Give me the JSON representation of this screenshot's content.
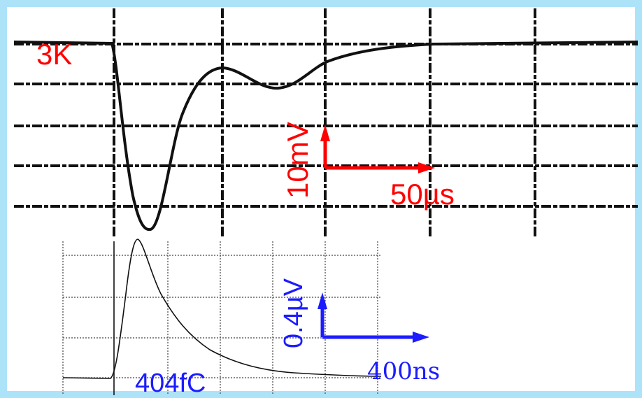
{
  "scope": {
    "temperature": "3K",
    "voltage_scale": "10mV",
    "time_scale": "50µs"
  },
  "inset": {
    "voltage_scale": "0.4µV",
    "time_scale": "400ns",
    "charge": "404fC"
  }
}
